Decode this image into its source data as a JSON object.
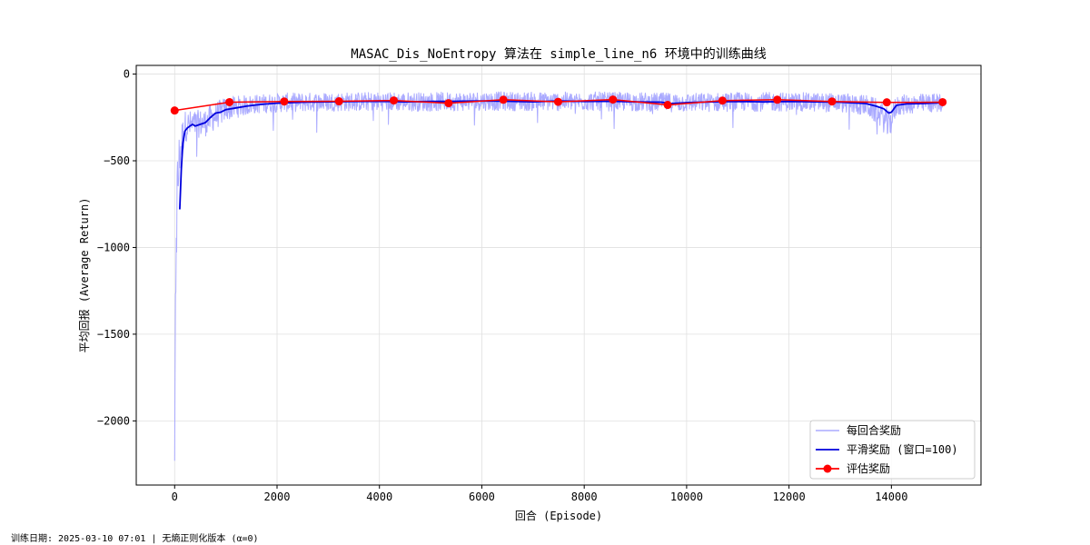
{
  "chart_data": {
    "type": "line",
    "title": "MASAC_Dis_NoEntropy 算法在 simple_line_n6 环境中的训练曲线",
    "xlabel": "回合 (Episode)",
    "ylabel": "平均回报 (Average Return)",
    "xlim": [
      -750,
      15750
    ],
    "ylim": [
      -2370,
      50
    ],
    "xticks": [
      0,
      2000,
      4000,
      6000,
      8000,
      10000,
      12000,
      14000
    ],
    "yticks": [
      0,
      -500,
      -1000,
      -1500,
      -2000
    ],
    "grid": true,
    "legend_position": "lower-right",
    "series": [
      {
        "name": "每回合奖励",
        "color": "#aaaaff",
        "style": "line",
        "approx_band": {
          "x": [
            0,
            20,
            50,
            100,
            200,
            400,
            600,
            800,
            1000,
            1500,
            2000,
            3000,
            4000,
            5000,
            6000,
            7000,
            8000,
            9000,
            10000,
            11000,
            12000,
            13000,
            13500,
            13800,
            13950,
            14100,
            14500,
            15000
          ],
          "center": [
            -2270,
            -1200,
            -700,
            -450,
            -300,
            -290,
            -280,
            -240,
            -200,
            -175,
            -165,
            -160,
            -158,
            -160,
            -155,
            -158,
            -157,
            -160,
            -165,
            -160,
            -160,
            -165,
            -180,
            -230,
            -300,
            -180,
            -170,
            -165
          ],
          "spread": [
            150,
            400,
            250,
            150,
            90,
            80,
            80,
            80,
            70,
            55,
            55,
            55,
            55,
            55,
            55,
            55,
            55,
            55,
            55,
            55,
            55,
            55,
            60,
            80,
            90,
            60,
            55,
            55
          ]
        }
      },
      {
        "name": "平滑奖励 (窗口=100)",
        "color": "#0000dd",
        "style": "line",
        "x": [
          100,
          130,
          160,
          200,
          250,
          300,
          350,
          400,
          450,
          500,
          600,
          700,
          800,
          900,
          1000,
          1200,
          1400,
          1600,
          1800,
          2000,
          2500,
          3000,
          3500,
          4000,
          4500,
          5000,
          5500,
          6000,
          6500,
          7000,
          7500,
          8000,
          8500,
          9000,
          9500,
          9700,
          10000,
          10500,
          11000,
          11500,
          12000,
          12500,
          13000,
          13500,
          13700,
          13850,
          13950,
          14000,
          14100,
          14300,
          14600,
          15000
        ],
        "y": [
          -780,
          -550,
          -400,
          -330,
          -310,
          -300,
          -290,
          -300,
          -295,
          -290,
          -280,
          -250,
          -225,
          -220,
          -205,
          -195,
          -185,
          -178,
          -172,
          -168,
          -162,
          -160,
          -158,
          -157,
          -160,
          -158,
          -157,
          -155,
          -157,
          -160,
          -155,
          -158,
          -157,
          -160,
          -162,
          -170,
          -165,
          -160,
          -158,
          -160,
          -158,
          -160,
          -162,
          -170,
          -185,
          -200,
          -225,
          -220,
          -180,
          -172,
          -170,
          -165
        ]
      },
      {
        "name": "评估奖励",
        "color": "#ff0000",
        "style": "line-marker",
        "x": [
          0,
          1070,
          2140,
          3210,
          4280,
          5350,
          6420,
          7490,
          8560,
          9630,
          10700,
          11770,
          12840,
          13910,
          15000
        ],
        "y": [
          -210,
          -162,
          -158,
          -157,
          -152,
          -168,
          -148,
          -160,
          -147,
          -178,
          -153,
          -148,
          -158,
          -163,
          -162
        ]
      }
    ]
  },
  "footer": {
    "note": "训练日期: 2025-03-10 07:01 | 无熵正则化版本 (α=0)"
  }
}
